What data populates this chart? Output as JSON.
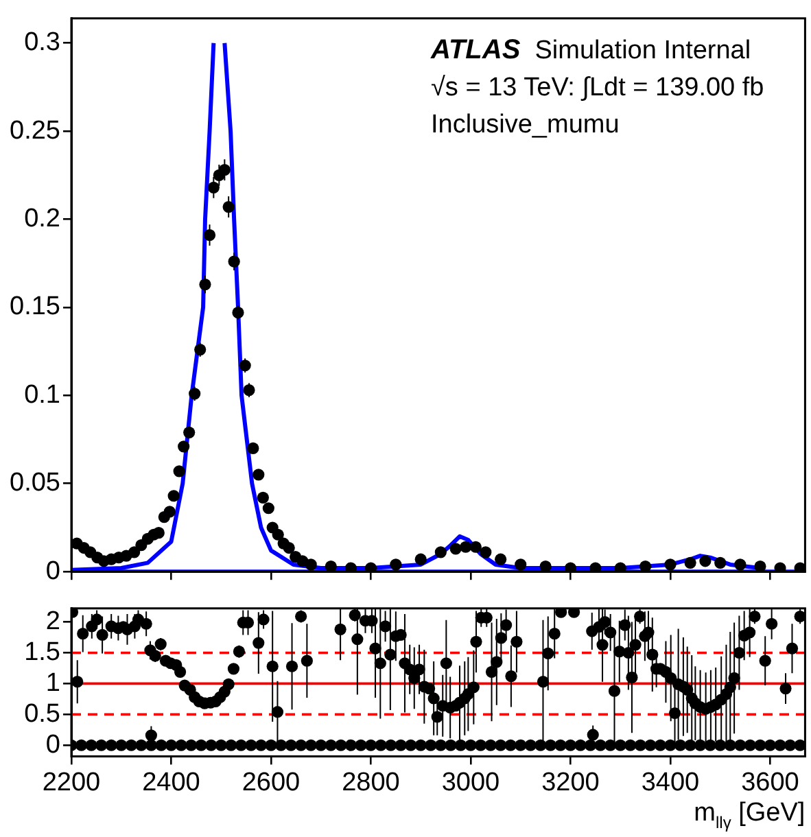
{
  "chart_data": [
    {
      "type": "scatter",
      "marker": "circle",
      "grid": false,
      "tick_labels": "y",
      "xlim": [
        2200,
        3670
      ],
      "ylim": [
        0,
        0.314
      ],
      "xticks": [
        2200,
        2400,
        2600,
        2800,
        3000,
        3200,
        3400,
        3600
      ],
      "yticks": [
        0,
        0.05,
        0.1,
        0.15,
        0.2,
        0.25,
        0.3
      ],
      "annotations": [
        "ATLAS Simulation Internal",
        "√s = 13 TeV: ∫Ldt = 139.00 fb",
        "Inclusive_mumu"
      ],
      "series": [
        {
          "type": "line",
          "marker": "none",
          "color": "#0000ff",
          "x": [
            2200,
            3670
          ],
          "values": [
            0,
            0
          ]
        },
        {
          "type": "line",
          "marker": "none",
          "color": "#0000ff",
          "x": [
            2200,
            2300,
            2353,
            2400,
            2423,
            2441,
            2464,
            2468,
            2477,
            2485,
            2488,
            2505,
            2507,
            2519,
            2526,
            2534,
            2541,
            2562,
            2580,
            2600,
            2645,
            2700,
            2800,
            2900,
            2940,
            2960,
            2978,
            2995,
            3020,
            3050,
            3100,
            3300,
            3400,
            3440,
            3460,
            3480,
            3520,
            3580
          ],
          "values": [
            0.001,
            0.002,
            0.005,
            0.017,
            0.05,
            0.1,
            0.15,
            0.2,
            0.25,
            0.3,
            null,
            null,
            0.3,
            0.25,
            0.2,
            0.15,
            0.1,
            0.05,
            0.025,
            0.012,
            0.004,
            0.002,
            0.002,
            0.004,
            0.01,
            0.015,
            0.02,
            0.018,
            0.01,
            0.004,
            0.002,
            0.002,
            0.004,
            0.007,
            0.009,
            0.008,
            0.004,
            0.002
          ]
        },
        {
          "type": "scatter",
          "color": "#000000",
          "x": [
            2211,
            2225,
            2238,
            2252,
            2265,
            2280,
            2295,
            2310,
            2326,
            2340,
            2353,
            2365,
            2375,
            2386,
            2397,
            2405,
            2416,
            2425,
            2436,
            2447,
            2458,
            2468,
            2477,
            2485,
            2496,
            2507,
            2515,
            2526,
            2534,
            2548,
            2556,
            2564,
            2575,
            2584,
            2595,
            2603,
            2614,
            2625,
            2636,
            2649,
            2663,
            2680,
            2720,
            2760,
            2800,
            2850,
            2900,
            2940,
            2970,
            2990,
            3010,
            3030,
            3060,
            3100,
            3150,
            3200,
            3250,
            3300,
            3350,
            3400,
            3440,
            3470,
            3500,
            3540,
            3580,
            3620,
            3660
          ],
          "values": [
            0.016,
            0.0135,
            0.011,
            0.008,
            0.006,
            0.007,
            0.008,
            0.009,
            0.011,
            0.015,
            0.0186,
            0.021,
            0.022,
            0.031,
            0.034,
            0.043,
            0.057,
            0.071,
            0.079,
            0.101,
            0.126,
            0.163,
            0.191,
            0.218,
            0.225,
            0.228,
            0.207,
            0.176,
            0.147,
            0.117,
            0.103,
            0.07,
            0.055,
            0.042,
            0.036,
            0.025,
            0.021,
            0.016,
            0.0135,
            0.0084,
            0.006,
            0.004,
            0.003,
            0.002,
            0.002,
            0.004,
            0.007,
            0.011,
            0.013,
            0.014,
            0.014,
            0.011,
            0.007,
            0.004,
            0.003,
            0.002,
            0.002,
            0.002,
            0.003,
            0.004,
            0.005,
            0.006,
            0.005,
            0.004,
            0.003,
            0.002,
            0.002
          ],
          "errors": [
            null,
            null,
            null,
            null,
            null,
            null,
            null,
            null,
            null,
            null,
            null,
            null,
            null,
            null,
            null,
            null,
            null,
            null,
            null,
            0.004,
            0.004,
            0.005,
            0.006,
            0.006,
            0.006,
            0.006,
            0.006,
            0.005,
            0.004,
            0.004,
            0.004,
            null,
            null,
            null,
            null,
            null,
            null,
            null,
            null,
            null,
            null,
            null,
            null,
            null,
            null,
            null,
            null,
            null,
            null,
            null,
            null,
            null,
            null,
            null,
            null,
            null,
            null,
            null,
            null,
            null,
            null,
            null,
            null,
            null,
            null,
            null,
            null
          ]
        }
      ]
    },
    {
      "type": "scatter",
      "marker": "circle",
      "grid": false,
      "xlim": [
        2200,
        3670
      ],
      "ylim": [
        -0.18,
        2.22
      ],
      "xticks": [
        2200,
        2400,
        2600,
        2800,
        3000,
        3200,
        3400,
        3600
      ],
      "yticks": [
        0,
        0.5,
        1,
        1.5,
        2
      ],
      "xlabel": "m$_{llγ}$ [GeV]",
      "ref_lines": [
        {
          "axis": "y",
          "value": 1,
          "color": "#ff0000",
          "line_style": "solid"
        },
        {
          "axis": "y",
          "value": 0.5,
          "color": "#ff0000",
          "line_style": "dashed"
        },
        {
          "axis": "y",
          "value": 1.5,
          "color": "#ff0000",
          "line_style": "dashed"
        }
      ],
      "series": [
        {
          "type": "scatter",
          "color": "#000000",
          "x": [
            2200,
            2220,
            2240,
            2260,
            2280,
            2300,
            2320,
            2340,
            2360,
            2380,
            2400,
            2420,
            2440,
            2460,
            2480,
            2500,
            2520,
            2540,
            2560,
            2580,
            2600,
            2620,
            2640,
            2660,
            2680,
            2700,
            2720,
            2740,
            2760,
            2780,
            2800,
            2820,
            2840,
            2860,
            2880,
            2900,
            2920,
            2940,
            2960,
            2980,
            3000,
            3020,
            3040,
            3060,
            3080,
            3100,
            3120,
            3140,
            3160,
            3180,
            3200,
            3220,
            3240,
            3260,
            3280,
            3300,
            3320,
            3340,
            3360,
            3380,
            3400,
            3420,
            3440,
            3460,
            3480,
            3500,
            3520,
            3540,
            3560,
            3580,
            3600,
            3620,
            3640,
            3660
          ],
          "values": [
            0,
            0,
            0,
            0,
            0,
            0,
            0,
            0,
            0,
            0,
            0,
            0,
            0,
            0,
            0,
            0,
            0,
            0,
            0,
            0,
            0,
            0,
            0,
            0,
            0,
            0,
            0,
            0,
            0,
            0,
            0,
            0,
            0,
            0,
            0,
            0,
            0,
            0,
            0,
            0,
            0,
            0,
            0,
            0,
            0,
            0,
            0,
            0,
            0,
            0,
            0,
            0,
            0,
            0,
            0,
            0,
            0,
            0,
            0,
            0,
            0,
            0,
            0,
            0,
            0,
            0,
            0,
            0,
            0,
            0,
            0,
            0,
            0,
            0
          ]
        },
        {
          "type": "scatter",
          "color": "#000000",
          "x": [
            2202,
            2212,
            2223,
            2241,
            2251,
            2262,
            2280,
            2294,
            2304,
            2312,
            2327,
            2334,
            2350,
            2358,
            2360,
            2368,
            2379,
            2389,
            2399,
            2410,
            2418,
            2427,
            2438,
            2447,
            2456,
            2467,
            2479,
            2489,
            2498,
            2507,
            2515,
            2525,
            2536,
            2544,
            2554,
            2575,
            2585,
            2603,
            2613,
            2642,
            2660,
            2672,
            2739,
            2768,
            2773,
            2789,
            2802,
            2809,
            2819,
            2829,
            2839,
            2850,
            2860,
            2868,
            2878,
            2887,
            2897,
            2907,
            2917,
            2926,
            2933,
            2944,
            2951,
            2959,
            2970,
            2978,
            2988,
            2995,
            3006,
            3011,
            3021,
            3032,
            3042,
            3052,
            3061,
            3071,
            3081,
            3092,
            3145,
            3155,
            3168,
            3181,
            3207,
            3243,
            3245,
            3257,
            3264,
            3269,
            3280,
            3288,
            3298,
            3309,
            3316,
            3323,
            3330,
            3339,
            3349,
            3356,
            3364,
            3372,
            3380,
            3391,
            3401,
            3409,
            3416,
            3426,
            3434,
            3443,
            3450,
            3460,
            3471,
            3481,
            3491,
            3502,
            3512,
            3520,
            3528,
            3538,
            3548,
            3559,
            3569,
            3590,
            3603,
            3631,
            3644,
            3660
          ],
          "values": [
            2.16,
            1.03,
            1.81,
            1.93,
            2.04,
            1.79,
            1.93,
            1.9,
            1.92,
            1.88,
            1.93,
            2.04,
            1.97,
            1.54,
            0.16,
            1.45,
            1.64,
            1.37,
            1.33,
            1.3,
            1.19,
            0.97,
            0.9,
            0.78,
            0.71,
            0.68,
            0.69,
            0.71,
            0.78,
            0.87,
            0.99,
            1.24,
            1.52,
            1.99,
            1.99,
            1.66,
            2.04,
            1.28,
            0.54,
            1.28,
            2.09,
            1.37,
            1.88,
            2.11,
            1.72,
            2.02,
            2.02,
            1.57,
            1.33,
            1.93,
            1.47,
            1.77,
            1.79,
            1.33,
            1.23,
            1.09,
            1.23,
            0.95,
            0.92,
            0.76,
            0.46,
            0.64,
            1.33,
            0.61,
            0.64,
            0.69,
            0.76,
            0.83,
            0.94,
            1.68,
            2.07,
            2.07,
            1.19,
            1.35,
            1.74,
            1.95,
            1.12,
            1.68,
            1.03,
            1.49,
            1.81,
            2.16,
            2.16,
            1.85,
            0.17,
            1.92,
            1.63,
            2.0,
            1.83,
            0.88,
            1.52,
            1.95,
            1.5,
            1.1,
            1.63,
            2.09,
            1.77,
            1.83,
            1.47,
            1.24,
            1.24,
            1.19,
            1.09,
            0.52,
            0.99,
            0.95,
            0.9,
            0.76,
            0.68,
            0.62,
            0.59,
            0.62,
            0.66,
            0.74,
            0.83,
            0.94,
            1.09,
            1.5,
            1.78,
            1.83,
            2.09,
            1.37,
            1.97,
            0.92,
            1.57,
            2.09
          ],
          "errors": [
            null,
            0.35,
            0.3,
            0.2,
            0.15,
            0.3,
            0.2,
            0.2,
            null,
            0.25,
            0.2,
            0.15,
            0.2,
            0.15,
            0.15,
            0.1,
            0.1,
            null,
            null,
            null,
            null,
            null,
            null,
            null,
            null,
            null,
            null,
            null,
            null,
            null,
            null,
            null,
            0.1,
            0.2,
            0.2,
            0.5,
            0.15,
            0.9,
            0.5,
            0.7,
            0.1,
            0.6,
            0.5,
            0.1,
            0.9,
            0.2,
            0.2,
            0.8,
            0.9,
            0.25,
            0.9,
            0.4,
            null,
            0.8,
            0.4,
            0.5,
            0.4,
            0.6,
            null,
            0.6,
            0.3,
            0.5,
            0.7,
            0.5,
            null,
            0.6,
            0.6,
            0.6,
            0.6,
            0.5,
            0.15,
            0.15,
            0.8,
            0.7,
            0.4,
            0.25,
            0.5,
            0.5,
            1.0,
            0.6,
            0.4,
            null,
            null,
            0.3,
            0.15,
            0.3,
            0.6,
            0.2,
            0.3,
            0.9,
            0.5,
            0.25,
            0.6,
            0.9,
            0.5,
            0.12,
            0.4,
            0.35,
            0.6,
            0.3,
            null,
            0.5,
            0.7,
            0.5,
            0.9,
            0.8,
            0.7,
            0.7,
            0.6,
            0.6,
            0.59,
            0.6,
            0.6,
            0.7,
            0.8,
            0.9,
            0.9,
            0.6,
            0.4,
            0.4,
            0.12,
            0.4,
            0.25,
            0.25,
            0.4,
            0.12
          ]
        }
      ]
    }
  ]
}
